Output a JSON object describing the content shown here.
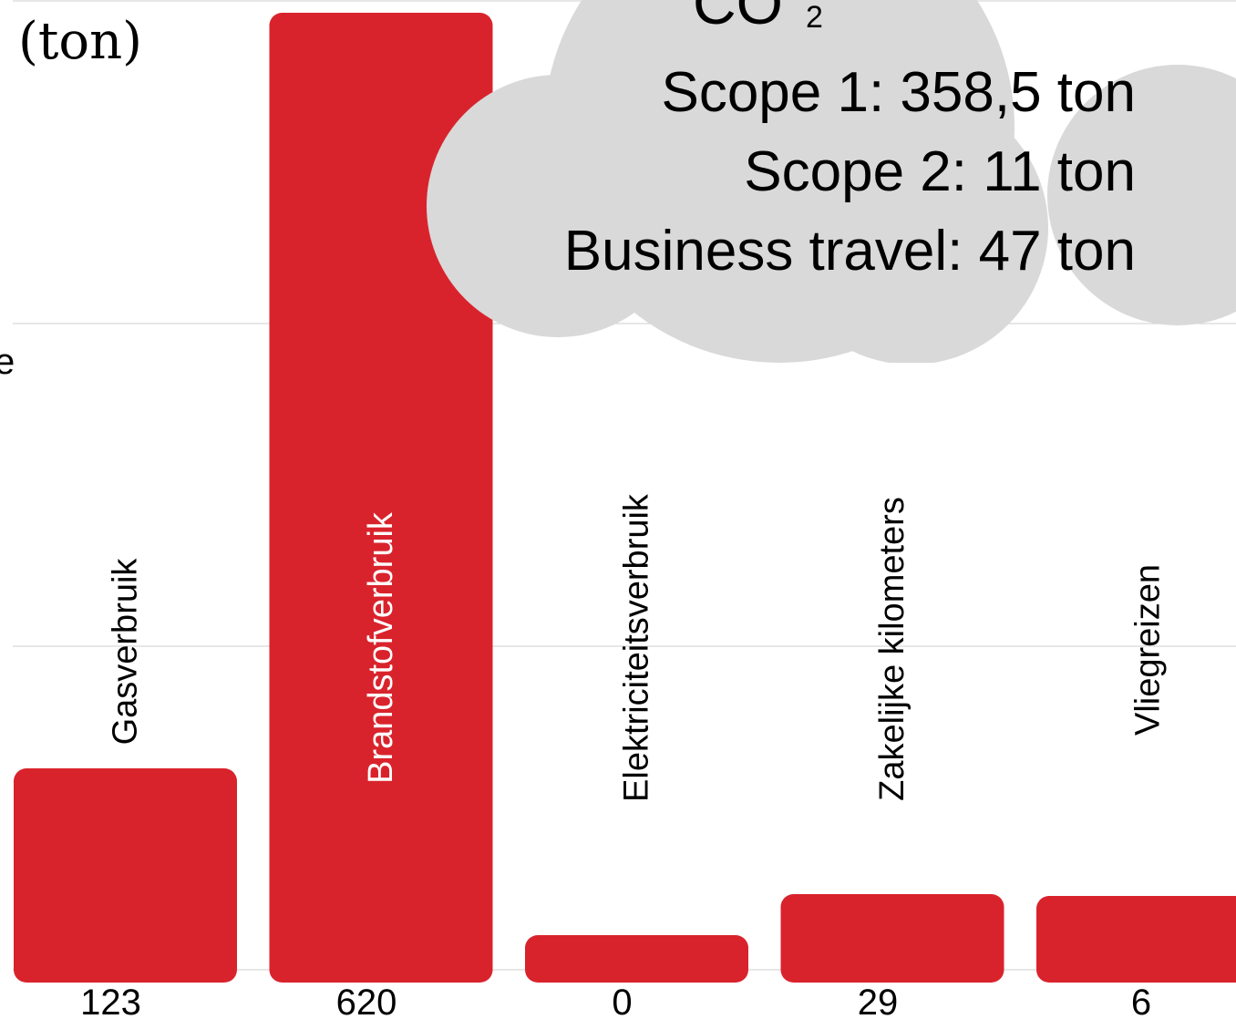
{
  "chart_data": {
    "type": "bar",
    "ylabel_unit": "(ton)",
    "ylabel_fragment": "e",
    "categories": [
      "Gasverbruik",
      "Brandstofverbruik",
      "Elektriciteitsverbruik",
      "Zakelijke kilometers",
      "Vliegreizen"
    ],
    "values": [
      123,
      620,
      0,
      29,
      6
    ],
    "value_labels": [
      "123",
      "620",
      "0",
      "29",
      "6"
    ],
    "bar_color": "#d9232c",
    "grid": true
  },
  "callout": {
    "co2_main": "CO",
    "co2_sub": "2",
    "lines": [
      "Scope 1: 358,5 ton",
      "Scope 2: 11 ton",
      "Business travel: 47 ton"
    ],
    "color": "#d9d9d9"
  }
}
